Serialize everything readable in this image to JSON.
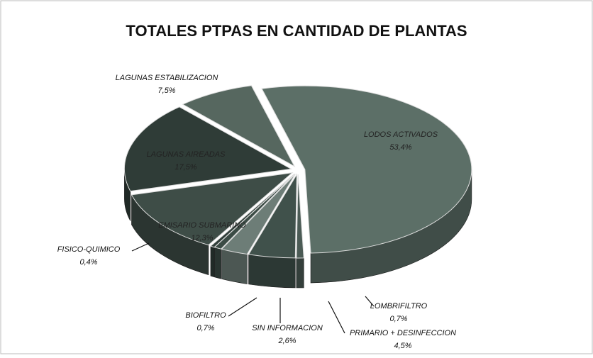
{
  "chart_data": {
    "type": "pie",
    "title": "TOTALES PTPAS EN CANTIDAD DE PLANTAS",
    "categories": [
      "LODOS ACTIVADOS",
      "LOMBRIFILTRO",
      "PRIMARIO + DESINFECCION",
      "SIN INFORMACION",
      "BIOFILTRO",
      "FISICO-QUIMICO",
      "EMISARIO SUBMARINO",
      "LAGUNAS AIREADAS",
      "LAGUNAS ESTABILIZACION"
    ],
    "values": [
      53.4,
      0.7,
      4.5,
      2.6,
      0.7,
      0.4,
      12.3,
      17.5,
      7.5
    ],
    "value_labels": [
      "53,4%",
      "0,7%",
      "4,5%",
      "2,6%",
      "0,7%",
      "0,4%",
      "12,3%",
      "17,5%",
      "7,5%"
    ],
    "colors": [
      "#5c6f67",
      "#4b5b55",
      "#40514b",
      "#6d7d77",
      "#3b4b45",
      "#303e39",
      "#3e4d47",
      "#2f3c37",
      "#56675f"
    ]
  }
}
